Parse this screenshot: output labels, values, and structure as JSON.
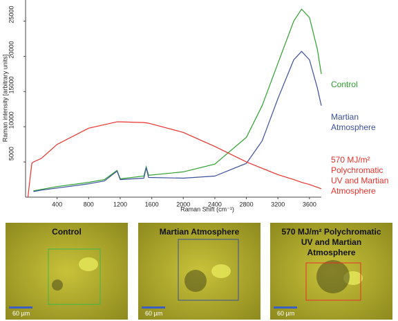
{
  "chart_data": {
    "type": "line",
    "x_label": "Raman Shift (cm⁻¹)",
    "y_label": "Raman intensity [arbitrary units]",
    "x": [
      30,
      50,
      80,
      100,
      200,
      400,
      800,
      1000,
      1160,
      1200,
      1500,
      1530,
      1560,
      2000,
      2400,
      2800,
      3000,
      3200,
      3400,
      3500,
      3600,
      3700,
      3750
    ],
    "series": [
      {
        "name": "Control",
        "color": "#2ca02c",
        "values": [
          null,
          null,
          null,
          900,
          1100,
          1500,
          2100,
          2500,
          3800,
          2600,
          3000,
          4300,
          3100,
          3600,
          4700,
          8500,
          13000,
          19000,
          25000,
          26700,
          25500,
          21000,
          17500
        ]
      },
      {
        "name": "Martian Atmosphere",
        "color": "#3a4f9a",
        "values": [
          null,
          null,
          null,
          800,
          1000,
          1300,
          1900,
          2300,
          3700,
          2500,
          2700,
          4200,
          2800,
          2700,
          3000,
          4800,
          8000,
          14000,
          19500,
          20700,
          19500,
          15500,
          13000
        ]
      },
      {
        "name": "570 MJ/m² Polychromatic UV and Martian Atmosphere",
        "color": "#e8302a",
        "values": [
          0,
          2000,
          4800,
          5000,
          5500,
          7500,
          9800,
          10300,
          10700,
          10700,
          10600,
          10550,
          10500,
          9200,
          7200,
          5000,
          4100,
          3200,
          2500,
          2100,
          1800,
          1400,
          1200
        ]
      }
    ],
    "xlim": [
      0,
      3750
    ],
    "ylim": [
      0,
      28000
    ],
    "xticks": [
      400,
      800,
      1200,
      1600,
      2000,
      2400,
      2800,
      3200,
      3600
    ],
    "yticks": [
      5000,
      10000,
      15000,
      20000,
      25000
    ]
  },
  "panels": [
    {
      "title": "Control",
      "scale_bar": "60 µm",
      "box_color": "#3cb84a"
    },
    {
      "title": "Martian Atmosphere",
      "scale_bar": "60 µm",
      "box_color": "#3a4f9a"
    },
    {
      "title": "570 MJ/m² Polychromatic UV and Martian Atmosphere",
      "scale_bar": "60 µm",
      "box_color": "#e8302a"
    }
  ]
}
